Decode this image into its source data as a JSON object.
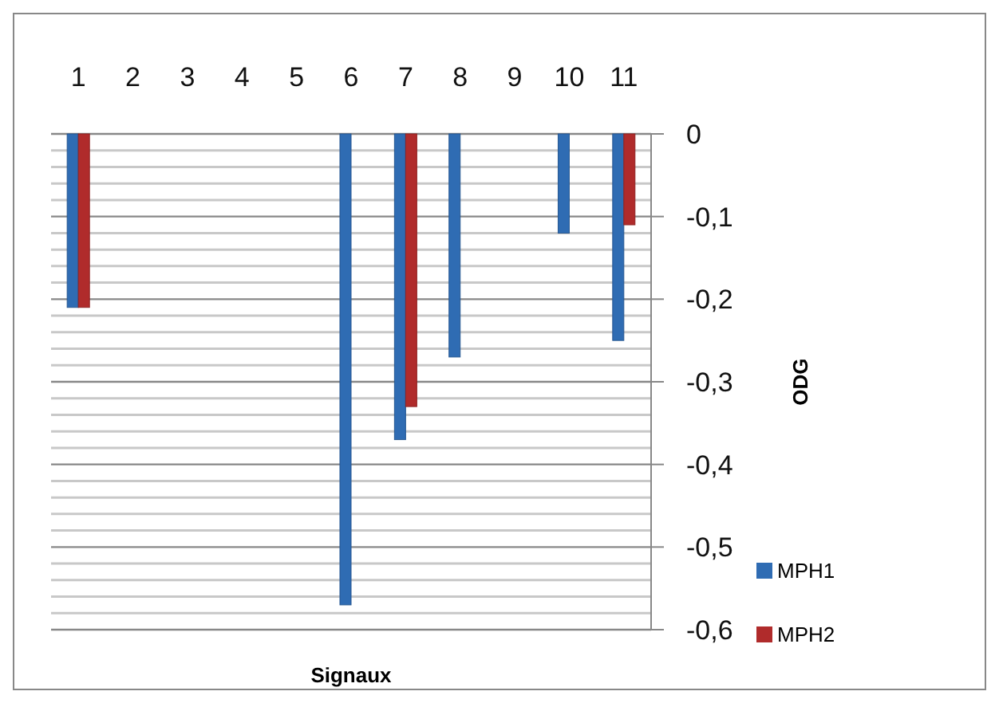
{
  "chart_data": {
    "type": "bar",
    "xlabel": "Signaux",
    "ylabel": "ODG",
    "categories": [
      "1",
      "2",
      "3",
      "4",
      "5",
      "6",
      "7",
      "8",
      "9",
      "10",
      "11"
    ],
    "series": [
      {
        "name": "MPH1",
        "color": "#2f6cb3",
        "values": [
          -0.21,
          null,
          null,
          null,
          null,
          -0.57,
          -0.37,
          -0.27,
          null,
          -0.12,
          -0.25
        ]
      },
      {
        "name": "MPH2",
        "color": "#b02b2b",
        "values": [
          -0.21,
          null,
          null,
          null,
          null,
          null,
          -0.33,
          null,
          null,
          null,
          -0.11
        ]
      }
    ],
    "ylim": [
      -0.6,
      0
    ],
    "yticks": [
      0,
      {
        "value": -0.02,
        "label": null
      },
      {
        "value": -0.04,
        "label": null
      },
      {
        "value": -0.06,
        "label": null
      },
      {
        "value": -0.08,
        "label": null
      },
      {
        "value": -0.1,
        "label": "-0,1"
      },
      {
        "value": -0.12,
        "label": null
      },
      {
        "value": -0.14,
        "label": null
      },
      {
        "value": -0.16,
        "label": null
      },
      {
        "value": -0.18,
        "label": null
      },
      {
        "value": -0.2,
        "label": "-0,2"
      },
      {
        "value": -0.22,
        "label": null
      },
      {
        "value": -0.24,
        "label": null
      },
      {
        "value": -0.26,
        "label": null
      },
      {
        "value": -0.28,
        "label": null
      },
      {
        "value": -0.3,
        "label": "-0,3"
      },
      {
        "value": -0.32,
        "label": null
      },
      {
        "value": -0.34,
        "label": null
      },
      {
        "value": -0.36,
        "label": null
      },
      {
        "value": -0.38,
        "label": null
      },
      {
        "value": -0.4,
        "label": "-0,4"
      },
      {
        "value": -0.42,
        "label": null
      },
      {
        "value": -0.44,
        "label": null
      },
      {
        "value": -0.46,
        "label": null
      },
      {
        "value": -0.48,
        "label": null
      },
      {
        "value": -0.5,
        "label": "-0,5"
      },
      {
        "value": -0.52,
        "label": null
      },
      {
        "value": -0.54,
        "label": null
      },
      {
        "value": -0.56,
        "label": null
      },
      {
        "value": -0.58,
        "label": null
      },
      {
        "value": -0.6,
        "label": "-0,6"
      }
    ],
    "grid": "y",
    "legend": "right"
  }
}
